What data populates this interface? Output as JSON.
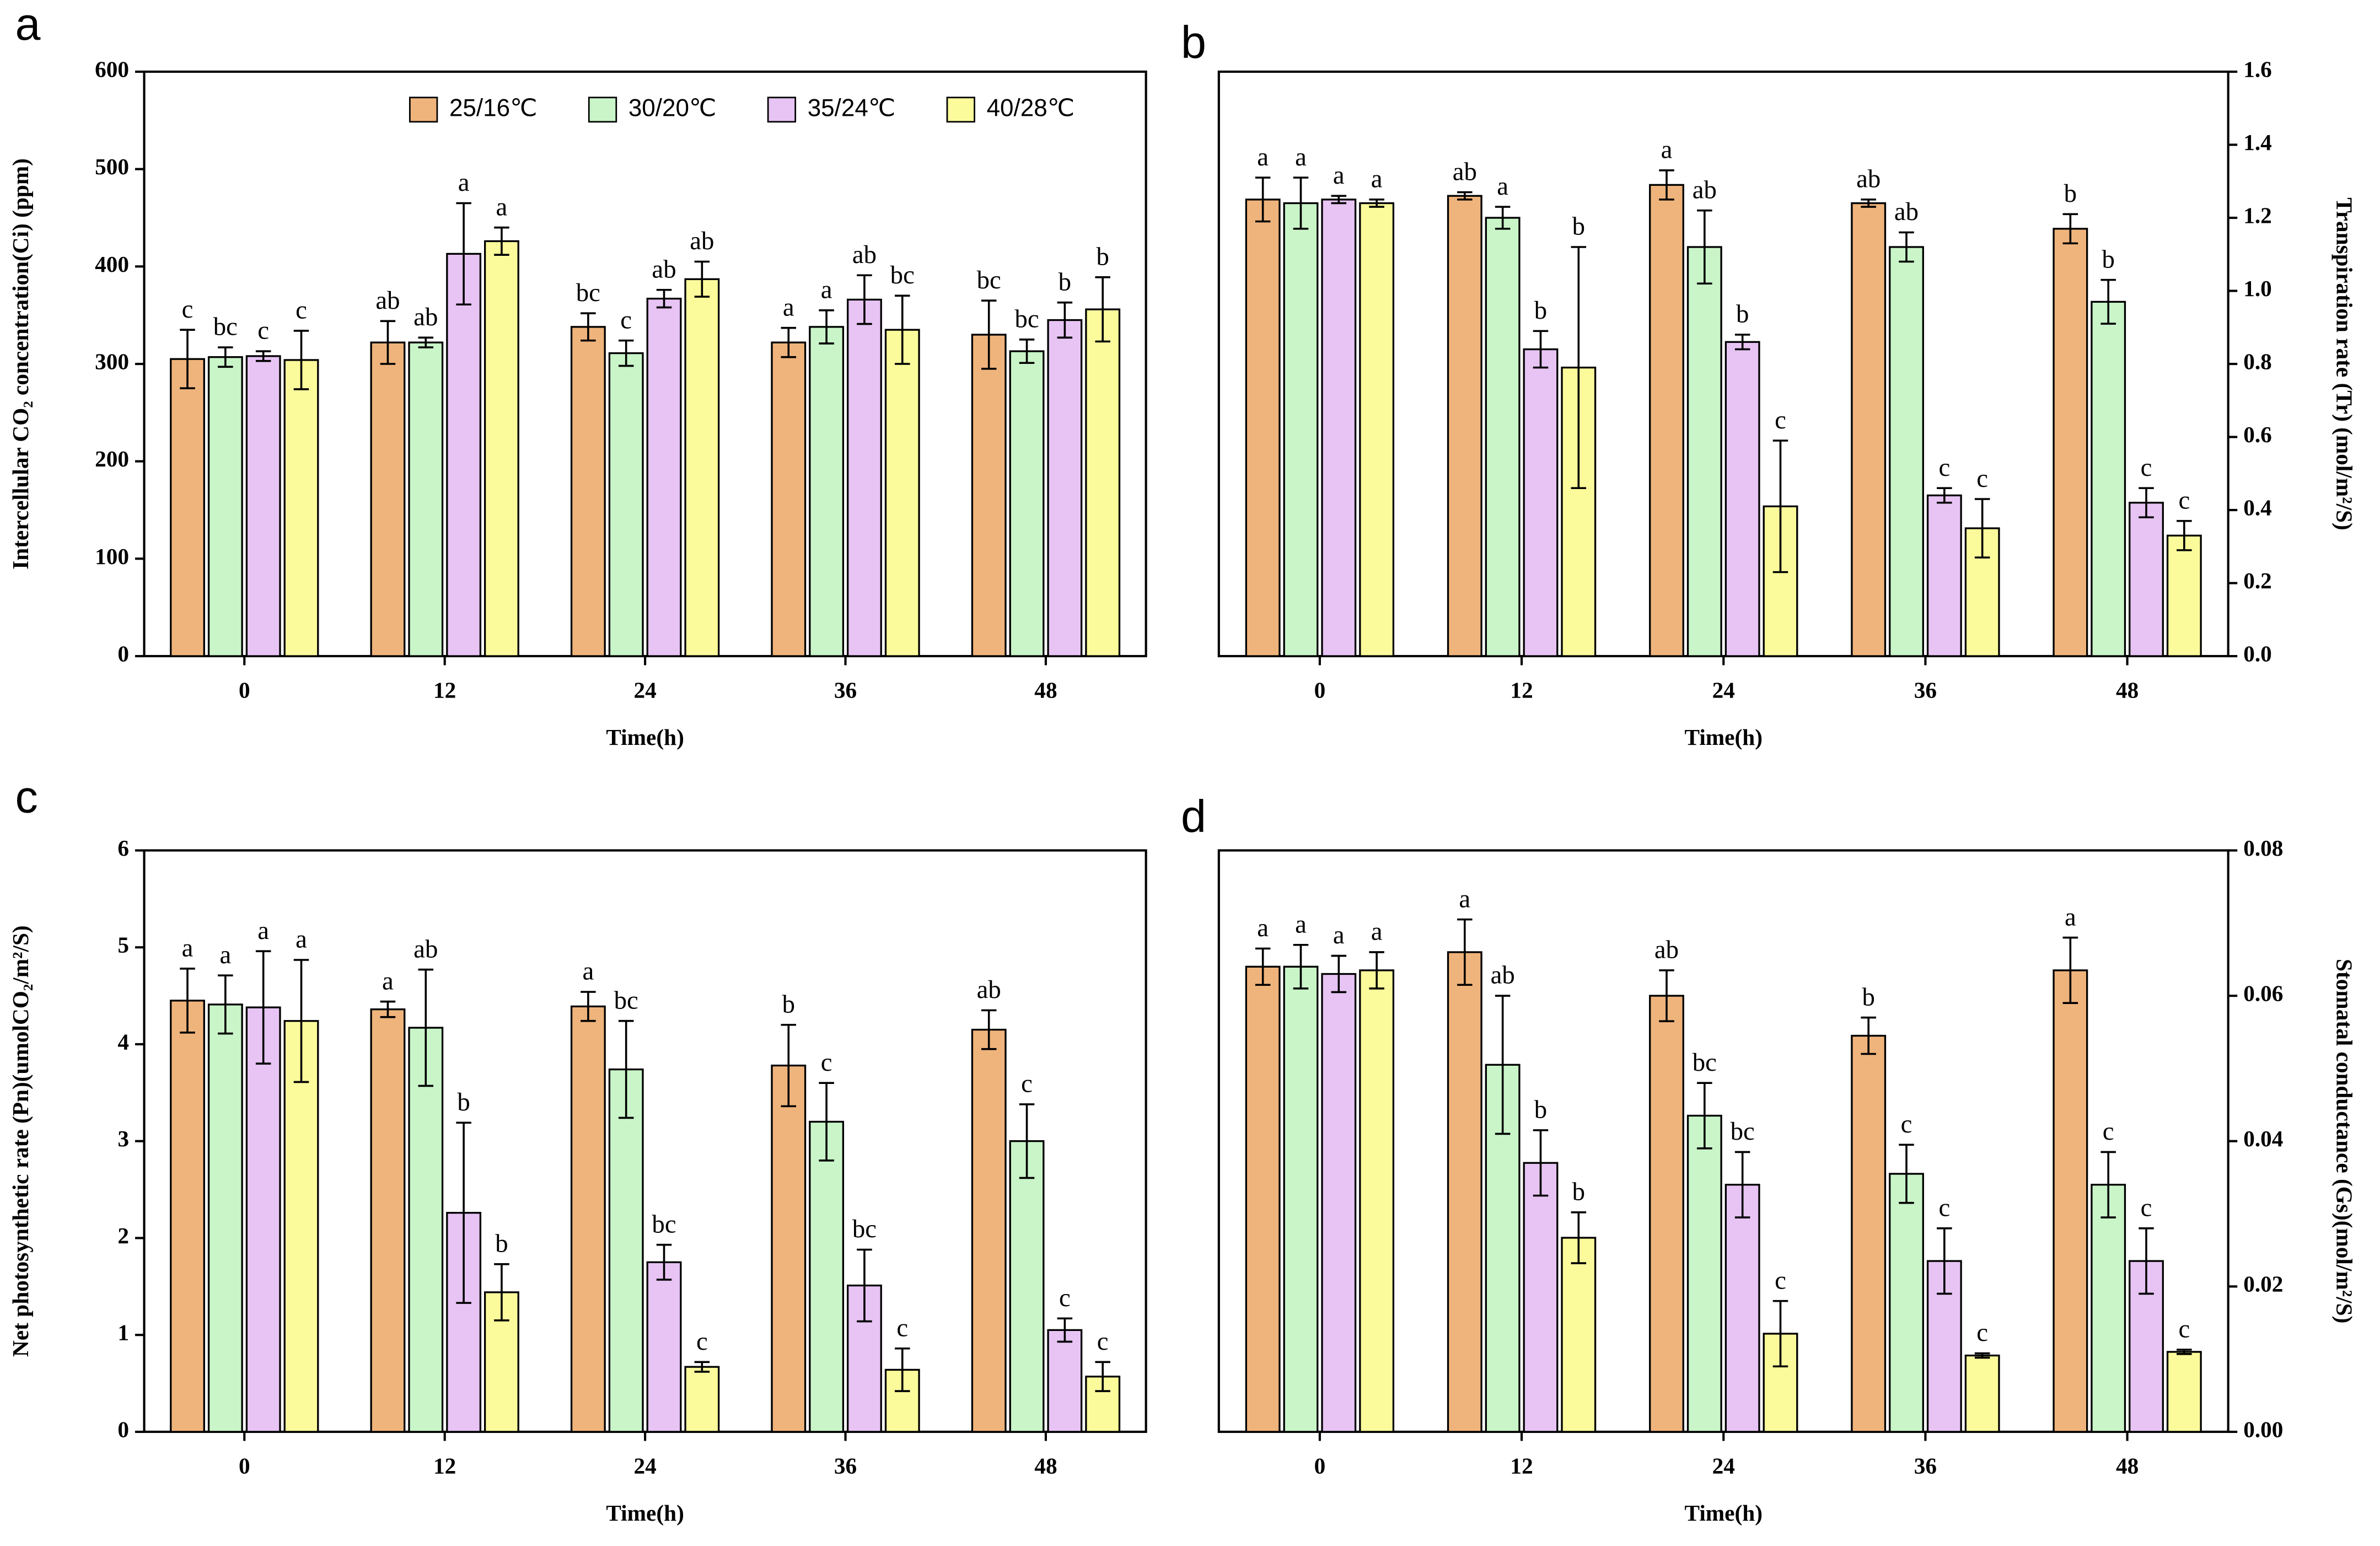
{
  "chart_data": [
    {
      "type": "bar",
      "panel_label": "a",
      "xlabel": "Time(h)",
      "ylabel": "Intercellular CO₂ concentration(Ci) (ppm)",
      "yaxis_side": "left",
      "categories": [
        "0",
        "12",
        "24",
        "36",
        "48"
      ],
      "ylim": [
        0,
        600
      ],
      "yticks": [
        0,
        100,
        200,
        300,
        400,
        500,
        600
      ],
      "legend": true,
      "legend_position": "top-right",
      "series": [
        {
          "name": "25/16℃",
          "color": "#efb47c",
          "values": [
            305,
            322,
            338,
            322,
            330
          ],
          "errors": [
            30,
            22,
            14,
            15,
            35
          ],
          "letters": [
            "c",
            "ab",
            "bc",
            "a",
            "bc"
          ]
        },
        {
          "name": "30/20℃",
          "color": "#c9f5c9",
          "values": [
            307,
            322,
            311,
            338,
            313
          ],
          "errors": [
            10,
            5,
            13,
            17,
            12
          ],
          "letters": [
            "bc",
            "ab",
            "c",
            "a",
            "bc"
          ]
        },
        {
          "name": "35/24℃",
          "color": "#e7c4f4",
          "values": [
            308,
            413,
            367,
            366,
            345
          ],
          "errors": [
            5,
            52,
            9,
            25,
            18
          ],
          "letters": [
            "c",
            "a",
            "ab",
            "ab",
            "b"
          ]
        },
        {
          "name": "40/28℃",
          "color": "#fbfb9c",
          "values": [
            304,
            426,
            387,
            335,
            356
          ],
          "errors": [
            30,
            14,
            18,
            35,
            33
          ],
          "letters": [
            "c",
            "a",
            "ab",
            "bc",
            "b"
          ]
        }
      ]
    },
    {
      "type": "bar",
      "panel_label": "b",
      "xlabel": "Time(h)",
      "ylabel": "Transpiration rate (Tr) (mol/m²/S)",
      "yaxis_side": "right",
      "categories": [
        "0",
        "12",
        "24",
        "36",
        "48"
      ],
      "ylim": [
        0,
        1.6
      ],
      "yticks": [
        {
          "value": 0,
          "label": "0.0"
        },
        0.2,
        0.4,
        0.6,
        0.8,
        {
          "value": 1,
          "label": "1.0"
        },
        1.2,
        1.4,
        1.6
      ],
      "legend": false,
      "series": [
        {
          "name": "25/16℃",
          "color": "#efb47c",
          "values": [
            1.25,
            1.26,
            1.29,
            1.24,
            1.17
          ],
          "errors": [
            0.06,
            0.01,
            0.04,
            0.01,
            0.04
          ],
          "letters": [
            "a",
            "ab",
            "a",
            "ab",
            "b"
          ]
        },
        {
          "name": "30/20℃",
          "color": "#c9f5c9",
          "values": [
            1.24,
            1.2,
            1.12,
            1.12,
            0.97
          ],
          "errors": [
            0.07,
            0.03,
            0.1,
            0.04,
            0.06
          ],
          "letters": [
            "a",
            "a",
            "ab",
            "ab",
            "b"
          ]
        },
        {
          "name": "35/24℃",
          "color": "#e7c4f4",
          "values": [
            1.25,
            0.84,
            0.86,
            0.44,
            0.42
          ],
          "errors": [
            0.01,
            0.05,
            0.02,
            0.02,
            0.04
          ],
          "letters": [
            "a",
            "b",
            "b",
            "c",
            "c"
          ]
        },
        {
          "name": "40/28℃",
          "color": "#fbfb9c",
          "values": [
            1.24,
            0.79,
            0.41,
            0.35,
            0.33
          ],
          "errors": [
            0.01,
            0.33,
            0.18,
            0.08,
            0.04
          ],
          "letters": [
            "a",
            "b",
            "c",
            "c",
            "c"
          ]
        }
      ]
    },
    {
      "type": "bar",
      "panel_label": "c",
      "xlabel": "Time(h)",
      "ylabel": "Net photosynthetic rate (Pn)(umolCO₂/m²/S)",
      "yaxis_side": "left",
      "categories": [
        "0",
        "12",
        "24",
        "36",
        "48"
      ],
      "ylim": [
        0,
        6
      ],
      "yticks": [
        0,
        1,
        2,
        3,
        4,
        5,
        6
      ],
      "legend": false,
      "series": [
        {
          "name": "25/16℃",
          "color": "#efb47c",
          "values": [
            4.45,
            4.36,
            4.39,
            3.78,
            4.15
          ],
          "errors": [
            0.33,
            0.08,
            0.15,
            0.42,
            0.2
          ],
          "letters": [
            "a",
            "a",
            "a",
            "b",
            "ab"
          ]
        },
        {
          "name": "30/20℃",
          "color": "#c9f5c9",
          "values": [
            4.41,
            4.17,
            3.74,
            3.2,
            3.0
          ],
          "errors": [
            0.3,
            0.6,
            0.5,
            0.4,
            0.38
          ],
          "letters": [
            "a",
            "ab",
            "bc",
            "c",
            "c"
          ]
        },
        {
          "name": "35/24℃",
          "color": "#e7c4f4",
          "values": [
            4.38,
            2.26,
            1.75,
            1.51,
            1.05
          ],
          "errors": [
            0.58,
            0.93,
            0.18,
            0.37,
            0.12
          ],
          "letters": [
            "a",
            "b",
            "bc",
            "bc",
            "c"
          ]
        },
        {
          "name": "40/28℃",
          "color": "#fbfb9c",
          "values": [
            4.24,
            1.44,
            0.67,
            0.64,
            0.57
          ],
          "errors": [
            0.63,
            0.29,
            0.05,
            0.22,
            0.15
          ],
          "letters": [
            "a",
            "b",
            "c",
            "c",
            "c"
          ]
        }
      ]
    },
    {
      "type": "bar",
      "panel_label": "d",
      "xlabel": "Time(h)",
      "ylabel": "Stomatal conductance (Gs)(mol/m²/S)",
      "yaxis_side": "right",
      "categories": [
        "0",
        "12",
        "24",
        "36",
        "48"
      ],
      "ylim": [
        0,
        0.08
      ],
      "yticks": [
        {
          "value": 0,
          "label": "0.00"
        },
        0.02,
        0.04,
        0.06,
        0.08
      ],
      "legend": false,
      "series": [
        {
          "name": "25/16℃",
          "color": "#efb47c",
          "values": [
            0.064,
            0.066,
            0.06,
            0.0545,
            0.0635
          ],
          "errors": [
            0.0025,
            0.0045,
            0.0035,
            0.0025,
            0.0045
          ],
          "letters": [
            "a",
            "a",
            "ab",
            "b",
            "a"
          ]
        },
        {
          "name": "30/20℃",
          "color": "#c9f5c9",
          "values": [
            0.064,
            0.0505,
            0.0435,
            0.0355,
            0.034
          ],
          "errors": [
            0.003,
            0.0095,
            0.0045,
            0.004,
            0.0045
          ],
          "letters": [
            "a",
            "ab",
            "bc",
            "c",
            "c"
          ]
        },
        {
          "name": "35/24℃",
          "color": "#e7c4f4",
          "values": [
            0.063,
            0.037,
            0.034,
            0.0235,
            0.0235
          ],
          "errors": [
            0.0025,
            0.0045,
            0.0045,
            0.0045,
            0.0045
          ],
          "letters": [
            "a",
            "b",
            "bc",
            "c",
            "c"
          ]
        },
        {
          "name": "40/28℃",
          "color": "#fbfb9c",
          "values": [
            0.0635,
            0.0267,
            0.0135,
            0.0105,
            0.011
          ],
          "errors": [
            0.0025,
            0.0035,
            0.0045,
            0.0003,
            0.0003
          ],
          "letters": [
            "a",
            "b",
            "c",
            "c",
            "c"
          ]
        }
      ]
    }
  ]
}
